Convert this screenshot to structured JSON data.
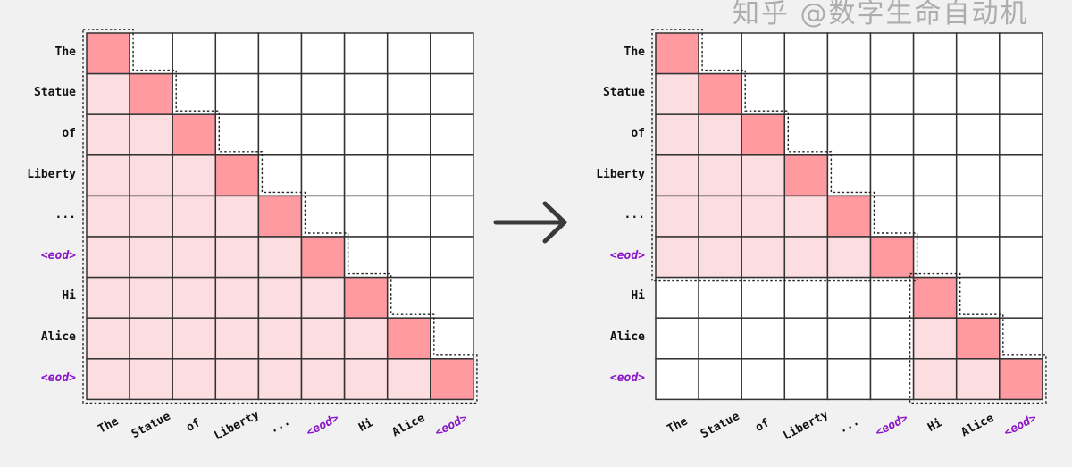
{
  "tokens": [
    "The",
    "Statue",
    "of",
    "Liberty",
    "...",
    "<eod>",
    "Hi",
    "Alice",
    "<eod>"
  ],
  "special_tokens": [
    "<eod>"
  ],
  "left_panel": {
    "mask": "causal-full-sequence",
    "documents": [
      [
        0,
        8
      ]
    ]
  },
  "right_panel": {
    "mask": "causal-per-document",
    "documents": [
      [
        0,
        5
      ],
      [
        6,
        8
      ]
    ]
  },
  "colors": {
    "diagonal": "#ff9aa0",
    "attended": "#fcdde0",
    "empty": "#ffffff",
    "grid_line": "#333333",
    "special_token": "#8a14c8",
    "arrow": "#3a3a3a",
    "background": "#f1f1f1"
  },
  "arrow_icon": "right-arrow-icon",
  "watermark": "知乎 @数字生命自动机"
}
